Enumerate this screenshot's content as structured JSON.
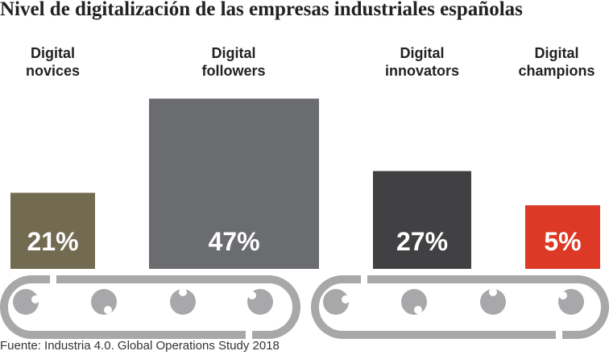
{
  "title": "Nivel de digitalización de las empresas industriales españolas",
  "source": "Fuente: Industria 4.0. Global Operations Study 2018",
  "chart_data": {
    "type": "bar",
    "title": "Nivel de digitalización de las empresas industriales españolas",
    "categories": [
      [
        "Digital",
        "novices"
      ],
      [
        "Digital",
        "followers"
      ],
      [
        "Digital",
        "innovators"
      ],
      [
        "Digital",
        "champions"
      ]
    ],
    "values": [
      21,
      47,
      27,
      5
    ],
    "value_labels": [
      "21%",
      "47%",
      "27%",
      "5%"
    ],
    "unit": "%",
    "colors": [
      "#736a52",
      "#6b6c70",
      "#414042",
      "#dc3a26"
    ],
    "conveyor_color": "#a8a8aa",
    "grid": false
  }
}
